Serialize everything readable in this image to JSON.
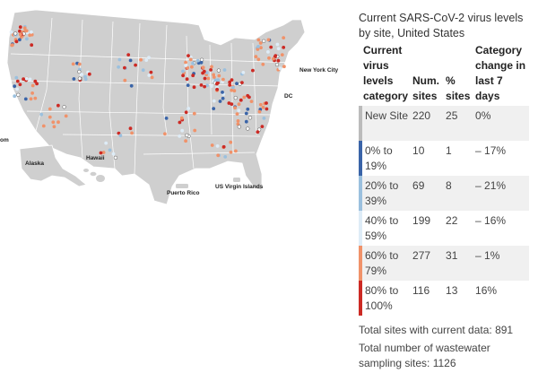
{
  "colors": {
    "new_site": "#ffffff",
    "c0_19": "#3a64a8",
    "c20_39": "#9bc0de",
    "c40_59": "#deecf7",
    "c60_79": "#f0926a",
    "c80_100": "#cc2a24",
    "land": "#cfcfcf",
    "borders": "#ffffff"
  },
  "map": {
    "labels": {
      "new_york_city": "New York City",
      "dc": "DC",
      "alaska": "Alaska",
      "hawaii": "Hawaii",
      "puerto_rico": "Puerto Rico",
      "usvi": "US Virgin Islands",
      "cut_left": "om"
    }
  },
  "legend": {
    "title": "Current SARS-CoV-2 virus levels by site, United States",
    "headers": {
      "category": "Current virus levels category",
      "num_sites": "Num. sites",
      "pct_sites": "% sites",
      "change": "Category change in last 7 days"
    },
    "rows": [
      {
        "category": "New Site",
        "num": "220",
        "pct": "25",
        "change": "0%",
        "color": "#ffffff"
      },
      {
        "category": "0% to 19%",
        "num": "10",
        "pct": "1",
        "change": "– 17%",
        "color": "#3a64a8"
      },
      {
        "category": "20% to 39%",
        "num": "69",
        "pct": "8",
        "change": "– 21%",
        "color": "#9bc0de"
      },
      {
        "category": "40% to 59%",
        "num": "199",
        "pct": "22",
        "change": "– 16%",
        "color": "#deecf7"
      },
      {
        "category": "60% to 79%",
        "num": "277",
        "pct": "31",
        "change": "– 1%",
        "color": "#f0926a"
      },
      {
        "category": "80% to 100%",
        "num": "116",
        "pct": "13",
        "change": "16%",
        "color": "#cc2a24"
      }
    ],
    "total_current": "Total sites with current data: 891",
    "total_all": "Total number of wastewater sampling sites: 1126"
  }
}
